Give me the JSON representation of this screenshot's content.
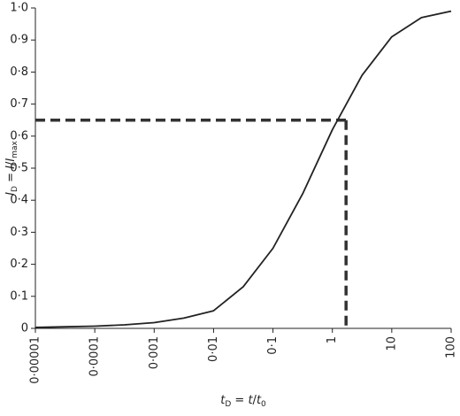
{
  "chart_data": {
    "type": "line",
    "xlabel": [
      "t",
      "D",
      " = ",
      "t",
      "/",
      "t",
      "0"
    ],
    "ylabel": [
      "I",
      "D",
      " = ",
      "I",
      "/",
      "I",
      "max"
    ],
    "xscale": "log",
    "x": [
      1e-05,
      3.16e-05,
      0.0001,
      0.000316,
      0.001,
      0.00316,
      0.01,
      0.0316,
      0.1,
      0.316,
      1,
      3.16,
      10,
      31.6,
      100
    ],
    "series": [
      {
        "color": "#222222",
        "values": [
          0.003,
          0.005,
          0.007,
          0.011,
          0.018,
          0.032,
          0.055,
          0.13,
          0.25,
          0.42,
          0.62,
          0.79,
          0.91,
          0.97,
          0.99
        ]
      }
    ],
    "reference_point": {
      "x": 1.7,
      "y": 0.65,
      "color": "#333333"
    },
    "xlim": [
      1e-05,
      100
    ],
    "ylim": [
      0,
      1
    ],
    "xticks": [
      {
        "value": 1e-05,
        "label": "0·00001"
      },
      {
        "value": 0.0001,
        "label": "0·0001"
      },
      {
        "value": 0.001,
        "label": "0·001"
      },
      {
        "value": 0.01,
        "label": "0·01"
      },
      {
        "value": 0.1,
        "label": "0·1"
      },
      1,
      10,
      100
    ],
    "yticks": [
      0,
      {
        "value": 0.1,
        "label": "0·1"
      },
      {
        "value": 0.2,
        "label": "0·2"
      },
      {
        "value": 0.3,
        "label": "0·3"
      },
      {
        "value": 0.4,
        "label": "0·4"
      },
      {
        "value": 0.5,
        "label": "0·5"
      },
      {
        "value": 0.6,
        "label": "0·6"
      },
      {
        "value": 0.7,
        "label": "0·7"
      },
      {
        "value": 0.8,
        "label": "0·8"
      },
      {
        "value": 0.9,
        "label": "0·9"
      },
      {
        "value": 1,
        "label": "1·0"
      }
    ]
  }
}
